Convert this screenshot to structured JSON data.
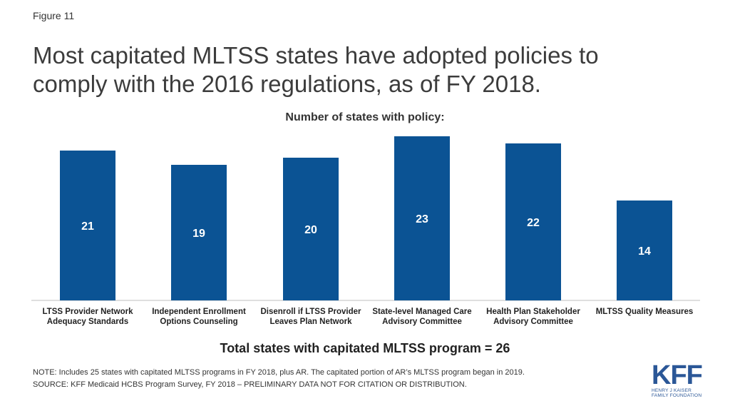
{
  "header": {
    "figure_label": "Figure 11",
    "title": "Most capitated MLTSS states have adopted policies to comply with the 2016 regulations, as of FY 2018."
  },
  "chart_data": {
    "type": "bar",
    "title": "Number of states with policy:",
    "categories": [
      [
        "LTSS Provider Network",
        "Adequacy Standards"
      ],
      [
        "Independent Enrollment",
        "Options Counseling"
      ],
      [
        "Disenroll if LTSS Provider",
        "Leaves Plan Network"
      ],
      [
        "State-level Managed Care",
        "Advisory Committee"
      ],
      [
        "Health Plan Stakeholder",
        "Advisory Committee"
      ],
      [
        "MLTSS Quality Measures"
      ]
    ],
    "values": [
      21,
      19,
      20,
      23,
      22,
      14
    ],
    "data_labels": [
      "21",
      "19",
      "20",
      "23",
      "22",
      "14"
    ],
    "ylim": [
      0,
      23
    ],
    "grid": false,
    "legend": "none",
    "bar_color": "#0b5394",
    "label_color": "#ffffff"
  },
  "total": "Total states with capitated MLTSS program = 26",
  "notes": {
    "note": "NOTE: Includes 25 states with capitated MLTSS programs in FY 2018, plus AR. The capitated portion of AR’s MLTSS program began in 2019.",
    "source": "SOURCE: KFF Medicaid HCBS Program Survey, FY 2018 – PRELIMINARY DATA NOT FOR CITATION OR DISTRIBUTION."
  },
  "logo": {
    "mark": "KFF",
    "line1": "HENRY J KAISER",
    "line2": "FAMILY FOUNDATION"
  }
}
